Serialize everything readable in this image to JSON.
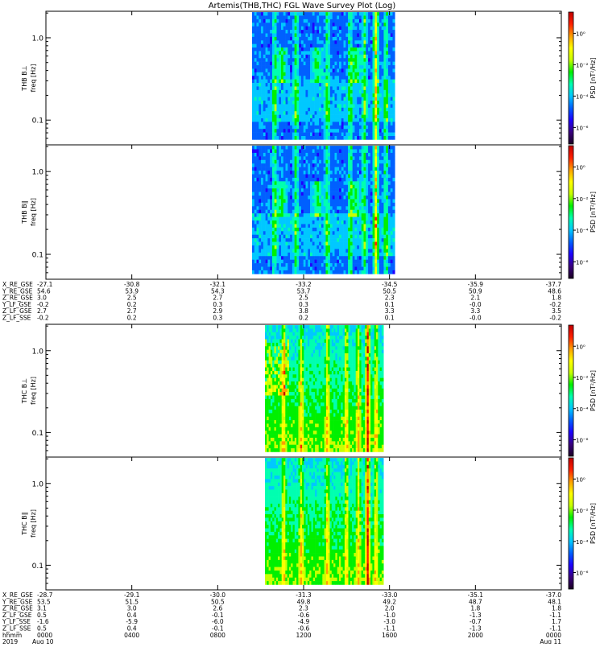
{
  "chart_data": {
    "type": "heatmap",
    "title": "Artemis(THB,THC) FGL Wave Survey Plot (Log)",
    "colorbar": {
      "label": "PSD [nT²/Hz]",
      "ticks": [
        "10⁰",
        "10⁻²",
        "10⁻⁴",
        "10⁻⁶"
      ],
      "colormap": [
        "#1a0022",
        "#3a0080",
        "#1e00ff",
        "#0060ff",
        "#00c8ff",
        "#00ffb0",
        "#00f000",
        "#c8ff00",
        "#ffff00",
        "#ffa000",
        "#ff2000",
        "#c00000"
      ]
    },
    "yaxis": {
      "scale": "log",
      "ylim": [
        0.05,
        2.1
      ],
      "ticks": [
        "1.0",
        "0.1"
      ],
      "tick_values": [
        1.0,
        0.1
      ]
    },
    "panels": [
      {
        "ylabel1": "THB B⊥",
        "ylabel2": "freq [Hz]",
        "t_start": 0.4,
        "t_end": 0.677
      },
      {
        "ylabel1": "THB B∥",
        "ylabel2": "freq [Hz]",
        "t_start": 0.4,
        "t_end": 0.677
      },
      {
        "ylabel1": "THC B⊥",
        "ylabel2": "freq [Hz]",
        "t_start": 0.425,
        "t_end": 0.655
      },
      {
        "ylabel1": "THC B∥",
        "ylabel2": "freq [Hz]",
        "t_start": 0.425,
        "t_end": 0.655
      }
    ],
    "xaxis_thb": {
      "rows": [
        {
          "label": "X_RE_GSE",
          "values": [
            "-27.1",
            "-30.8",
            "-32.1",
            "-33.2",
            "-34.5",
            "-35.9",
            "-37.7"
          ]
        },
        {
          "label": "Y_RE_GSE",
          "values": [
            "54.6",
            "53.9",
            "54.3",
            "53.7",
            "50.5",
            "50.9",
            "48.6"
          ]
        },
        {
          "label": "Z_RE_GSE",
          "values": [
            "3.0",
            "2.5",
            "2.7",
            "2.5",
            "2.3",
            "2.1",
            "1.8"
          ]
        },
        {
          "label": "Y_LF_GSE",
          "values": [
            "-0.2",
            "0.2",
            "0.3",
            "0.3",
            "0.1",
            "-0.0",
            "-0.2"
          ]
        },
        {
          "label": "Z_LF_GSE",
          "values": [
            "2.7",
            "2.7",
            "2.9",
            "3.8",
            "3.3",
            "3.3",
            "3.5"
          ]
        },
        {
          "label": "Z_LF_SSE",
          "values": [
            "-0.2",
            "0.2",
            "0.3",
            "0.2",
            "0.1",
            "-0.0",
            "-0.2"
          ]
        }
      ]
    },
    "xaxis_thc": {
      "rows": [
        {
          "label": "X_RE_GSE",
          "values": [
            "-28.7",
            "-29.1",
            "-30.0",
            "-31.3",
            "-33.0",
            "-35.1",
            "-37.0"
          ]
        },
        {
          "label": "Y_RE_GSE",
          "values": [
            "53.5",
            "51.5",
            "50.5",
            "49.8",
            "49.2",
            "48.7",
            "48.1"
          ]
        },
        {
          "label": "Z_RE_GSE",
          "values": [
            "3.1",
            "3.0",
            "2.6",
            "2.3",
            "2.0",
            "1.8",
            "1.8"
          ]
        },
        {
          "label": "Z_LF_GSE",
          "values": [
            "0.5",
            "0.4",
            "-0.1",
            "-0.6",
            "-1.0",
            "-1.3",
            "-1.1"
          ]
        },
        {
          "label": "Y_LF_SSE",
          "values": [
            "-1.6",
            "-5.9",
            "-6.0",
            "-4.9",
            "-3.0",
            "-0.7",
            "1.7"
          ]
        },
        {
          "label": "Z_LF_SSE",
          "values": [
            "0.5",
            "0.4",
            "-0.1",
            "-0.6",
            "-1.1",
            "-1.3",
            "-1.1"
          ]
        }
      ],
      "hhmm": {
        "label": "hhmm",
        "values": [
          "0000",
          "0400",
          "0800",
          "1200",
          "1600",
          "2000",
          "0000"
        ]
      },
      "date": {
        "label": "2019",
        "start": "Aug 10",
        "end": "Aug 11"
      }
    }
  }
}
